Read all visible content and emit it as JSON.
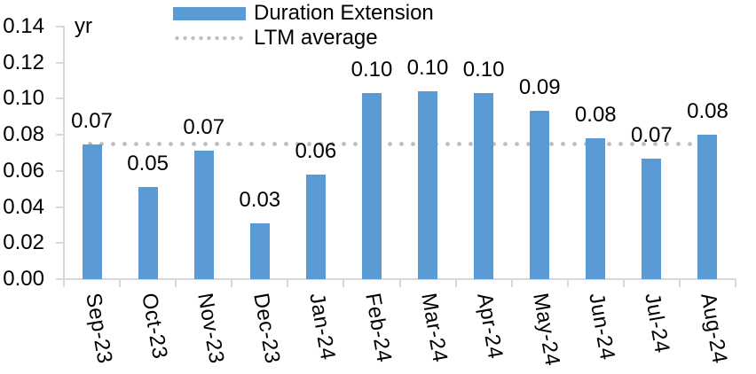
{
  "chart_data": {
    "type": "bar",
    "title": "",
    "unit_label": "yr",
    "categories": [
      "Sep-23",
      "Oct-23",
      "Nov-23",
      "Dec-23",
      "Jan-24",
      "Feb-24",
      "Mar-24",
      "Apr-24",
      "May-24",
      "Jun-24",
      "Jul-24",
      "Aug-24"
    ],
    "series": [
      {
        "name": "Duration Extension",
        "type": "bar",
        "color": "#5B9BD5",
        "values": [
          0.07,
          0.05,
          0.07,
          0.03,
          0.06,
          0.1,
          0.1,
          0.1,
          0.09,
          0.08,
          0.07,
          0.08
        ],
        "values_precise": [
          0.0745,
          0.051,
          0.071,
          0.031,
          0.058,
          0.1032,
          0.1042,
          0.1032,
          0.0935,
          0.0782,
          0.0669,
          0.0801
        ],
        "data_labels": [
          "0.07",
          "0.05",
          "0.07",
          "0.03",
          "0.06",
          "0.10",
          "0.10",
          "0.10",
          "0.09",
          "0.08",
          "0.07",
          "0.08"
        ]
      },
      {
        "name": "LTM average",
        "type": "line",
        "line_style": "dotted",
        "color": "#BFBFBF",
        "value": 0.075
      }
    ],
    "ylim": [
      0,
      0.14
    ],
    "ytick_step": 0.02,
    "ytick_labels": [
      "0.00",
      "0.02",
      "0.04",
      "0.06",
      "0.08",
      "0.10",
      "0.12",
      "0.14"
    ],
    "legend_position": "top-center",
    "grid": false,
    "axis_color": "#D9D9D9",
    "text_color": "#000000"
  }
}
